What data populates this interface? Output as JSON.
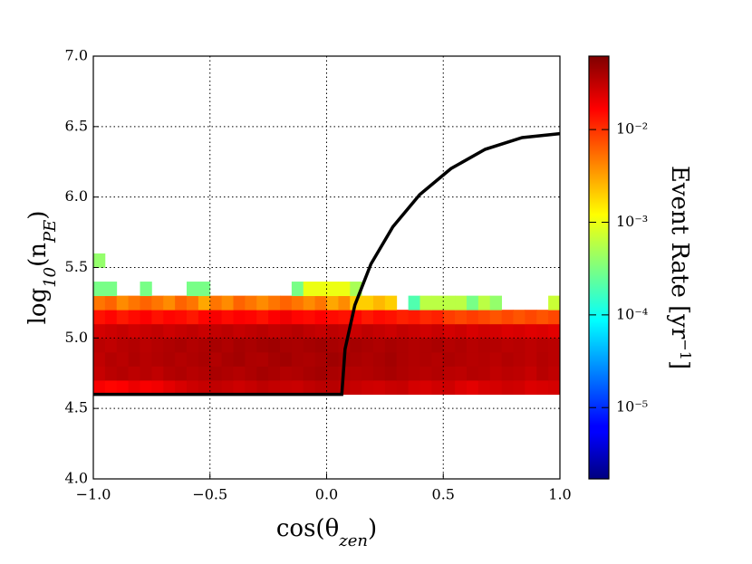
{
  "chart_data": {
    "type": "heatmap",
    "xlabel": [
      {
        "text": "cos(θ"
      },
      {
        "text": "zen",
        "sub": true
      },
      {
        "text": ")"
      }
    ],
    "ylabel": [
      {
        "text": "log"
      },
      {
        "text": "10",
        "sub": true
      },
      {
        "text": "(n"
      },
      {
        "text": "PE",
        "sub": true
      },
      {
        "text": ")"
      }
    ],
    "colorbar_label": [
      {
        "text": "Event Rate  [yr"
      },
      {
        "text": "−1",
        "sup": true
      },
      {
        "text": "]"
      }
    ],
    "xlim": [
      -1,
      1
    ],
    "ylim": [
      4,
      7
    ],
    "xticks": [
      {
        "value": -1,
        "label": "−1.0"
      },
      {
        "value": -0.5,
        "label": "−0.5"
      },
      {
        "value": 0,
        "label": "0.0"
      },
      {
        "value": 0.5,
        "label": "0.5"
      },
      {
        "value": 1,
        "label": "1.0"
      }
    ],
    "yticks": [
      {
        "value": 4,
        "label": "4.0"
      },
      {
        "value": 4.5,
        "label": "4.5"
      },
      {
        "value": 5,
        "label": "5.0"
      },
      {
        "value": 5.5,
        "label": "5.5"
      },
      {
        "value": 6,
        "label": "6.0"
      },
      {
        "value": 6.5,
        "label": "6.5"
      },
      {
        "value": 7,
        "label": "7.0"
      }
    ],
    "grid": true,
    "colormap": "jet",
    "color_scale": "log",
    "clim": [
      1.7e-06,
      0.062
    ],
    "cticks": [
      {
        "value": 1e-05,
        "label": "10⁻⁵"
      },
      {
        "value": 0.0001,
        "label": "10⁻⁴"
      },
      {
        "value": 0.001,
        "label": "10⁻³"
      },
      {
        "value": 0.01,
        "label": "10⁻²"
      }
    ],
    "xbins": [
      -1,
      -0.95,
      -0.9,
      -0.85,
      -0.8,
      -0.75,
      -0.7,
      -0.65,
      -0.6,
      -0.55,
      -0.5,
      -0.45,
      -0.4,
      -0.35,
      -0.3,
      -0.25,
      -0.2,
      -0.15,
      -0.1,
      -0.05,
      0,
      0.05,
      0.1,
      0.15,
      0.2,
      0.25,
      0.3,
      0.35,
      0.4,
      0.45,
      0.5,
      0.55,
      0.6,
      0.65,
      0.7,
      0.75,
      0.8,
      0.85,
      0.9,
      0.95,
      1
    ],
    "ybins": [
      4.6,
      4.7,
      4.8,
      4.9,
      5.0,
      5.1,
      5.2,
      5.3,
      5.4,
      5.5,
      5.6
    ],
    "z": [
      [
        0.018,
        0.016,
        0.017,
        0.02,
        0.018,
        0.019,
        0.022,
        0.025,
        0.028,
        0.03,
        0.032,
        0.03,
        0.028,
        0.03,
        0.033,
        0.031,
        0.03,
        0.029,
        0.032,
        0.034,
        0.035,
        0.033,
        0.03,
        0.028,
        0.027,
        0.029,
        0.03,
        0.026,
        0.025,
        0.027,
        0.028,
        0.024,
        0.022,
        0.025,
        0.026,
        0.028,
        0.027,
        0.024,
        0.025,
        0.026
      ],
      [
        0.03,
        0.034,
        0.036,
        0.033,
        0.035,
        0.032,
        0.036,
        0.038,
        0.035,
        0.037,
        0.04,
        0.038,
        0.036,
        0.039,
        0.042,
        0.04,
        0.037,
        0.038,
        0.041,
        0.043,
        0.04,
        0.038,
        0.036,
        0.037,
        0.039,
        0.041,
        0.038,
        0.036,
        0.035,
        0.037,
        0.034,
        0.033,
        0.036,
        0.035,
        0.032,
        0.034,
        0.033,
        0.03,
        0.035,
        0.032
      ],
      [
        0.032,
        0.036,
        0.034,
        0.038,
        0.035,
        0.037,
        0.039,
        0.036,
        0.038,
        0.04,
        0.037,
        0.041,
        0.043,
        0.039,
        0.038,
        0.042,
        0.044,
        0.04,
        0.039,
        0.041,
        0.045,
        0.042,
        0.04,
        0.038,
        0.04,
        0.043,
        0.039,
        0.037,
        0.038,
        0.036,
        0.039,
        0.037,
        0.035,
        0.036,
        0.034,
        0.037,
        0.035,
        0.033,
        0.036,
        0.034
      ],
      [
        0.034,
        0.032,
        0.035,
        0.037,
        0.034,
        0.036,
        0.038,
        0.04,
        0.037,
        0.039,
        0.041,
        0.038,
        0.042,
        0.04,
        0.043,
        0.045,
        0.041,
        0.04,
        0.042,
        0.044,
        0.041,
        0.039,
        0.042,
        0.04,
        0.038,
        0.041,
        0.039,
        0.037,
        0.038,
        0.04,
        0.036,
        0.038,
        0.035,
        0.037,
        0.036,
        0.034,
        0.035,
        0.033,
        0.035,
        0.034
      ],
      [
        0.026,
        0.028,
        0.03,
        0.027,
        0.029,
        0.031,
        0.028,
        0.03,
        0.032,
        0.029,
        0.031,
        0.033,
        0.03,
        0.032,
        0.034,
        0.031,
        0.033,
        0.035,
        0.032,
        0.03,
        0.033,
        0.031,
        0.029,
        0.032,
        0.03,
        0.028,
        0.031,
        0.029,
        0.027,
        0.029,
        0.026,
        0.028,
        0.025,
        0.027,
        0.026,
        0.024,
        0.025,
        0.023,
        0.024,
        0.022
      ],
      [
        0.014,
        0.016,
        0.013,
        0.015,
        0.017,
        0.014,
        0.016,
        0.015,
        0.013,
        0.016,
        0.018,
        0.015,
        0.017,
        0.016,
        0.014,
        0.017,
        0.019,
        0.016,
        0.015,
        0.017,
        0.015,
        0.014,
        0.016,
        0.013,
        0.015,
        0.014,
        0.012,
        0.013,
        0.011,
        0.012,
        0.009,
        0.008,
        0.009,
        0.008,
        0.007,
        0.008,
        0.007,
        0.008,
        0.007,
        0.008
      ],
      [
        0.005,
        0.006,
        0.004,
        0.005,
        0.006,
        0.005,
        0.004,
        0.006,
        0.005,
        0.003,
        0.005,
        0.004,
        0.006,
        0.005,
        0.004,
        0.005,
        0.006,
        0.005,
        0.004,
        0.005,
        0.003,
        0.004,
        0.002,
        0.002,
        0.0025,
        0.002,
        null,
        0.0002,
        0.0006,
        0.0006,
        0.0006,
        0.0006,
        0.0003,
        0.0006,
        0.0004,
        null,
        null,
        null,
        null,
        0.0007
      ],
      [
        0.0003,
        0.0003,
        null,
        null,
        0.0003,
        null,
        null,
        null,
        0.0003,
        0.0003,
        null,
        null,
        null,
        null,
        null,
        null,
        null,
        0.0003,
        0.001,
        0.001,
        0.001,
        0.001,
        0.0005,
        null,
        null,
        null,
        null,
        null,
        null,
        null,
        null,
        null,
        null,
        null,
        null,
        null,
        null,
        null,
        null,
        null
      ],
      [
        null,
        null,
        null,
        null,
        null,
        null,
        null,
        null,
        null,
        null,
        null,
        null,
        null,
        null,
        null,
        null,
        null,
        null,
        null,
        null,
        null,
        null,
        null,
        null,
        null,
        null,
        null,
        null,
        null,
        null,
        null,
        null,
        null,
        null,
        null,
        null,
        null,
        null,
        null,
        null
      ],
      [
        0.0004,
        null,
        null,
        null,
        null,
        null,
        null,
        null,
        null,
        null,
        null,
        null,
        null,
        null,
        null,
        null,
        null,
        null,
        null,
        null,
        null,
        null,
        null,
        null,
        null,
        null,
        null,
        null,
        null,
        null,
        null,
        null,
        null,
        null,
        null,
        null,
        null,
        null,
        null,
        null
      ]
    ],
    "curve": {
      "color": "#000000",
      "x": [
        -1,
        0.065,
        0.079,
        0.121,
        0.19,
        0.284,
        0.399,
        0.533,
        0.68,
        0.838,
        1
      ],
      "y": [
        4.6,
        4.6,
        4.921,
        5.233,
        5.525,
        5.789,
        6.017,
        6.202,
        6.339,
        6.422,
        6.45
      ]
    }
  }
}
